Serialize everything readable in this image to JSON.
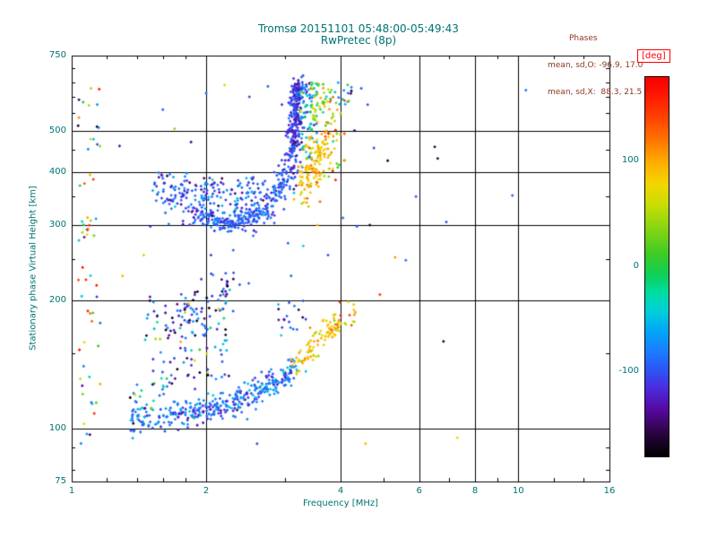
{
  "header": {
    "title_line1": "Tromsø 20151101 05:48:00-05:49:43",
    "title_line2": "RwPretec (8p)",
    "phases_label": "Phases",
    "phases_o": "mean, sd,O: -96.9, 17.0",
    "phases_x": "mean, sd,X:  88.3, 21.5"
  },
  "colors": {
    "axis_text": "#007373",
    "title_text": "#007373",
    "annotation_text": "#8e3520",
    "colorbar_title": "#ff0000",
    "frame": "#000000",
    "background": "#ffffff"
  },
  "chart_data": {
    "type": "scatter",
    "title": "Tromsø 20151101 05:48:00-05:49:43  RwPretec (8p)",
    "xlabel": "Frequency [MHz]",
    "ylabel": "Stationary phase Virtual Height [km]",
    "x_scale": "log",
    "y_scale": "log",
    "xlim": [
      1,
      16
    ],
    "ylim": [
      75,
      750
    ],
    "grid": true,
    "x_ticks": [
      {
        "value": 1,
        "label": "1"
      },
      {
        "value": 2,
        "label": "2"
      },
      {
        "value": 4,
        "label": "4"
      },
      {
        "value": 6,
        "label": "6"
      },
      {
        "value": 8,
        "label": "8"
      },
      {
        "value": 10,
        "label": "10"
      },
      {
        "value": 16,
        "label": "16"
      }
    ],
    "y_ticks": [
      {
        "value": 750,
        "label": "750"
      },
      {
        "value": 500,
        "label": "500"
      },
      {
        "value": 400,
        "label": "400"
      },
      {
        "value": 300,
        "label": "300"
      },
      {
        "value": 200,
        "label": "200"
      },
      {
        "value": 100,
        "label": "100"
      },
      {
        "value": 75,
        "label": "75"
      }
    ],
    "x_minor_ticks": [
      1.2,
      1.4,
      1.6,
      1.8,
      3,
      5,
      7,
      9,
      12,
      14
    ],
    "y_minor_ticks": [
      80,
      90,
      150,
      250,
      350,
      450,
      550,
      600,
      650,
      700
    ],
    "colorbar": {
      "title": "[deg]",
      "unit": "deg",
      "min": -180,
      "max": 180,
      "ticks": [
        {
          "value": 100,
          "label": "100"
        },
        {
          "value": 0,
          "label": "0"
        },
        {
          "value": -100,
          "label": "-100"
        }
      ],
      "stops": [
        [
          -180,
          "#000000"
        ],
        [
          -158,
          "#2b0440"
        ],
        [
          -136,
          "#55089e"
        ],
        [
          -115,
          "#4b2ce0"
        ],
        [
          -98,
          "#2b55f5"
        ],
        [
          -80,
          "#1a7dff"
        ],
        [
          -60,
          "#00a8f5"
        ],
        [
          -42,
          "#00cfd8"
        ],
        [
          -25,
          "#00dda4"
        ],
        [
          -8,
          "#10cf58"
        ],
        [
          12,
          "#3ecb24"
        ],
        [
          35,
          "#83d414"
        ],
        [
          58,
          "#c6dd05"
        ],
        [
          78,
          "#f2d600"
        ],
        [
          98,
          "#ffb000"
        ],
        [
          120,
          "#ff7500"
        ],
        [
          145,
          "#ff3a00"
        ],
        [
          170,
          "#fb0b00"
        ],
        [
          180,
          "#f70000"
        ]
      ]
    },
    "phase_stats": {
      "o_mode_mean": -96.9,
      "o_mode_sd": 17.0,
      "x_mode_mean": 88.3,
      "x_mode_sd": 21.5
    },
    "clusters": [
      {
        "name": "left-edge-column",
        "type": "box",
        "f_range": [
          1.03,
          1.16
        ],
        "h_range": [
          88,
          655
        ],
        "count": 52,
        "phase_dist": "uniform"
      },
      {
        "name": "left-edge-column-dense",
        "type": "box",
        "f_range": [
          1.04,
          1.14
        ],
        "h_range": [
          280,
          320
        ],
        "count": 10,
        "phase_dist": "uniform"
      },
      {
        "name": "f-trace-start-blob",
        "type": "path",
        "path": [
          [
            1.6,
            372
          ],
          [
            1.75,
            350
          ],
          [
            1.95,
            330
          ]
        ],
        "jitter_f": 0.045,
        "jitter_h": 20,
        "count": 95,
        "phase_mean": -100,
        "phase_sd": 22
      },
      {
        "name": "f-trace-minimum",
        "type": "path",
        "path": [
          [
            1.95,
            316
          ],
          [
            2.1,
            306
          ],
          [
            2.3,
            303
          ],
          [
            2.5,
            309
          ],
          [
            2.65,
            320
          ]
        ],
        "jitter_f": 0.03,
        "jitter_h": 8,
        "count": 170,
        "phase_mean": -96,
        "phase_sd": 15
      },
      {
        "name": "f-trace-upper-scatter",
        "type": "box",
        "f_range": [
          1.95,
          2.75
        ],
        "h_range": [
          315,
          390
        ],
        "count": 115,
        "phase_mean": -95,
        "phase_sd": 28
      },
      {
        "name": "f-trace-rise",
        "type": "path",
        "path": [
          [
            2.65,
            325
          ],
          [
            2.8,
            342
          ],
          [
            2.95,
            368
          ],
          [
            3.05,
            400
          ],
          [
            3.12,
            435
          ]
        ],
        "jitter_f": 0.025,
        "jitter_h": 16,
        "count": 130,
        "phase_mean": -97,
        "phase_sd": 17
      },
      {
        "name": "f-trace-vertical-band",
        "type": "path",
        "path": [
          [
            3.12,
            435
          ],
          [
            3.15,
            485
          ],
          [
            3.17,
            535
          ],
          [
            3.19,
            580
          ],
          [
            3.21,
            618
          ],
          [
            3.23,
            645
          ]
        ],
        "jitter_f": 0.017,
        "jitter_h": 16,
        "count": 260,
        "phase_mean": -110,
        "phase_sd": 18
      },
      {
        "name": "x-mode-cyan-right-of-band",
        "type": "box",
        "f_range": [
          3.25,
          3.55
        ],
        "h_range": [
          430,
          650
        ],
        "count": 70,
        "phase_mean": -55,
        "phase_sd": 40
      },
      {
        "name": "x-mode-green-upper",
        "type": "box",
        "f_range": [
          3.4,
          3.85
        ],
        "h_range": [
          520,
          648
        ],
        "count": 55,
        "phase_mean": 35,
        "phase_sd": 50
      },
      {
        "name": "x-mode-yellow-cluster",
        "type": "path",
        "path": [
          [
            3.3,
            368
          ],
          [
            3.42,
            398
          ],
          [
            3.52,
            432
          ],
          [
            3.62,
            468
          ]
        ],
        "jitter_f": 0.028,
        "jitter_h": 26,
        "count": 135,
        "phase_mean": 88,
        "phase_sd": 21
      },
      {
        "name": "x-mode-right-sparse",
        "type": "box",
        "f_range": [
          3.7,
          4.1
        ],
        "h_range": [
          380,
          630
        ],
        "count": 38,
        "phase_mean": 75,
        "phase_sd": 45
      },
      {
        "name": "x-mode-blue-top-right",
        "type": "box",
        "f_range": [
          3.85,
          4.25
        ],
        "h_range": [
          570,
          648
        ],
        "count": 12,
        "phase_mean": -85,
        "phase_sd": 45
      },
      {
        "name": "mid-scatter-cloud",
        "type": "box",
        "f_range": [
          1.45,
          2.3
        ],
        "h_range": [
          130,
          205
        ],
        "count": 95,
        "phase_mean": -105,
        "phase_sd": 42
      },
      {
        "name": "mid-scatter-clump-left",
        "type": "path",
        "path": [
          [
            1.75,
            160
          ],
          [
            1.82,
            180
          ],
          [
            1.88,
            198
          ]
        ],
        "jitter_f": 0.05,
        "jitter_h": 14,
        "count": 35,
        "phase_mean": -112,
        "phase_sd": 30
      },
      {
        "name": "mid-scatter-clump-right",
        "type": "path",
        "path": [
          [
            2.14,
            200
          ],
          [
            2.21,
            217
          ],
          [
            2.26,
            229
          ]
        ],
        "jitter_f": 0.035,
        "jitter_h": 10,
        "count": 22,
        "phase_mean": -108,
        "phase_sd": 30
      },
      {
        "name": "mid-scatter-warm",
        "type": "box",
        "f_range": [
          1.5,
          2.15
        ],
        "h_range": [
          135,
          200
        ],
        "count": 10,
        "phase_mean": 70,
        "phase_sd": 45
      },
      {
        "name": "e-trace-main",
        "type": "path",
        "path": [
          [
            1.35,
            105
          ],
          [
            1.5,
            106
          ],
          [
            1.7,
            108
          ],
          [
            1.9,
            110
          ],
          [
            2.1,
            112
          ],
          [
            2.3,
            115
          ],
          [
            2.5,
            119
          ],
          [
            2.7,
            124
          ],
          [
            2.85,
            128
          ],
          [
            3.0,
            133
          ],
          [
            3.15,
            140
          ]
        ],
        "jitter_f": 0.022,
        "jitter_h": 4,
        "count": 360,
        "phase_mean": -85,
        "phase_sd": 25
      },
      {
        "name": "e-trace-start-fuzz",
        "type": "box",
        "f_range": [
          1.35,
          1.7
        ],
        "h_range": [
          110,
          132
        ],
        "count": 26,
        "phase_mean": -60,
        "phase_sd": 55
      },
      {
        "name": "e-trace-above-scatter",
        "type": "box",
        "f_range": [
          2.9,
          3.35
        ],
        "h_range": [
          165,
          200
        ],
        "count": 18,
        "phase_mean": -95,
        "phase_sd": 45
      },
      {
        "name": "e-trace-yellow-tail",
        "type": "path",
        "path": [
          [
            3.2,
            144
          ],
          [
            3.4,
            152
          ],
          [
            3.6,
            161
          ],
          [
            3.8,
            170
          ],
          [
            3.95,
            176
          ]
        ],
        "jitter_f": 0.024,
        "jitter_h": 6,
        "count": 95,
        "phase_mean": 85,
        "phase_sd": 22
      },
      {
        "name": "e-tail-sparse-ext",
        "type": "box",
        "f_range": [
          3.95,
          4.35
        ],
        "h_range": [
          172,
          200
        ],
        "count": 12,
        "phase_mean": 85,
        "phase_sd": 35
      }
    ],
    "outliers": [
      [
        4.15,
        640,
        10
      ],
      [
        3.95,
        648,
        -60
      ],
      [
        4.45,
        628,
        -95
      ],
      [
        4.6,
        575,
        -100
      ],
      [
        4.3,
        500,
        -150
      ],
      [
        4.75,
        455,
        -100
      ],
      [
        5.1,
        425,
        -170
      ],
      [
        4.05,
        312,
        -90
      ],
      [
        4.35,
        298,
        -95
      ],
      [
        4.65,
        300,
        -165
      ],
      [
        5.3,
        252,
        110
      ],
      [
        5.6,
        248,
        -90
      ],
      [
        6.5,
        458,
        -160
      ],
      [
        6.6,
        430,
        -165
      ],
      [
        6.9,
        305,
        -100
      ],
      [
        6.8,
        160,
        -170
      ],
      [
        9.7,
        352,
        -95
      ],
      [
        10.4,
        622,
        -85
      ],
      [
        7.3,
        95,
        80
      ],
      [
        4.55,
        92,
        95
      ],
      [
        2.6,
        92,
        -100
      ],
      [
        3.3,
        268,
        -40
      ],
      [
        3.05,
        272,
        -95
      ],
      [
        2.55,
        283,
        -85
      ],
      [
        3.55,
        300,
        90
      ],
      [
        3.75,
        255,
        -100
      ],
      [
        1.28,
        460,
        -130
      ],
      [
        1.3,
        228,
        95
      ],
      [
        5.9,
        350,
        -100
      ],
      [
        4.9,
        206,
        150
      ],
      [
        1.6,
        560,
        -100
      ],
      [
        1.7,
        505,
        40
      ],
      [
        1.85,
        470,
        -140
      ],
      [
        2.0,
        612,
        -90
      ],
      [
        2.2,
        640,
        70
      ],
      [
        2.5,
        600,
        -110
      ],
      [
        2.75,
        635,
        -95
      ],
      [
        3.1,
        228,
        -90
      ],
      [
        2.3,
        262,
        -95
      ],
      [
        2.05,
        255,
        -120
      ],
      [
        1.5,
        298,
        -120
      ],
      [
        1.45,
        255,
        60
      ]
    ]
  }
}
